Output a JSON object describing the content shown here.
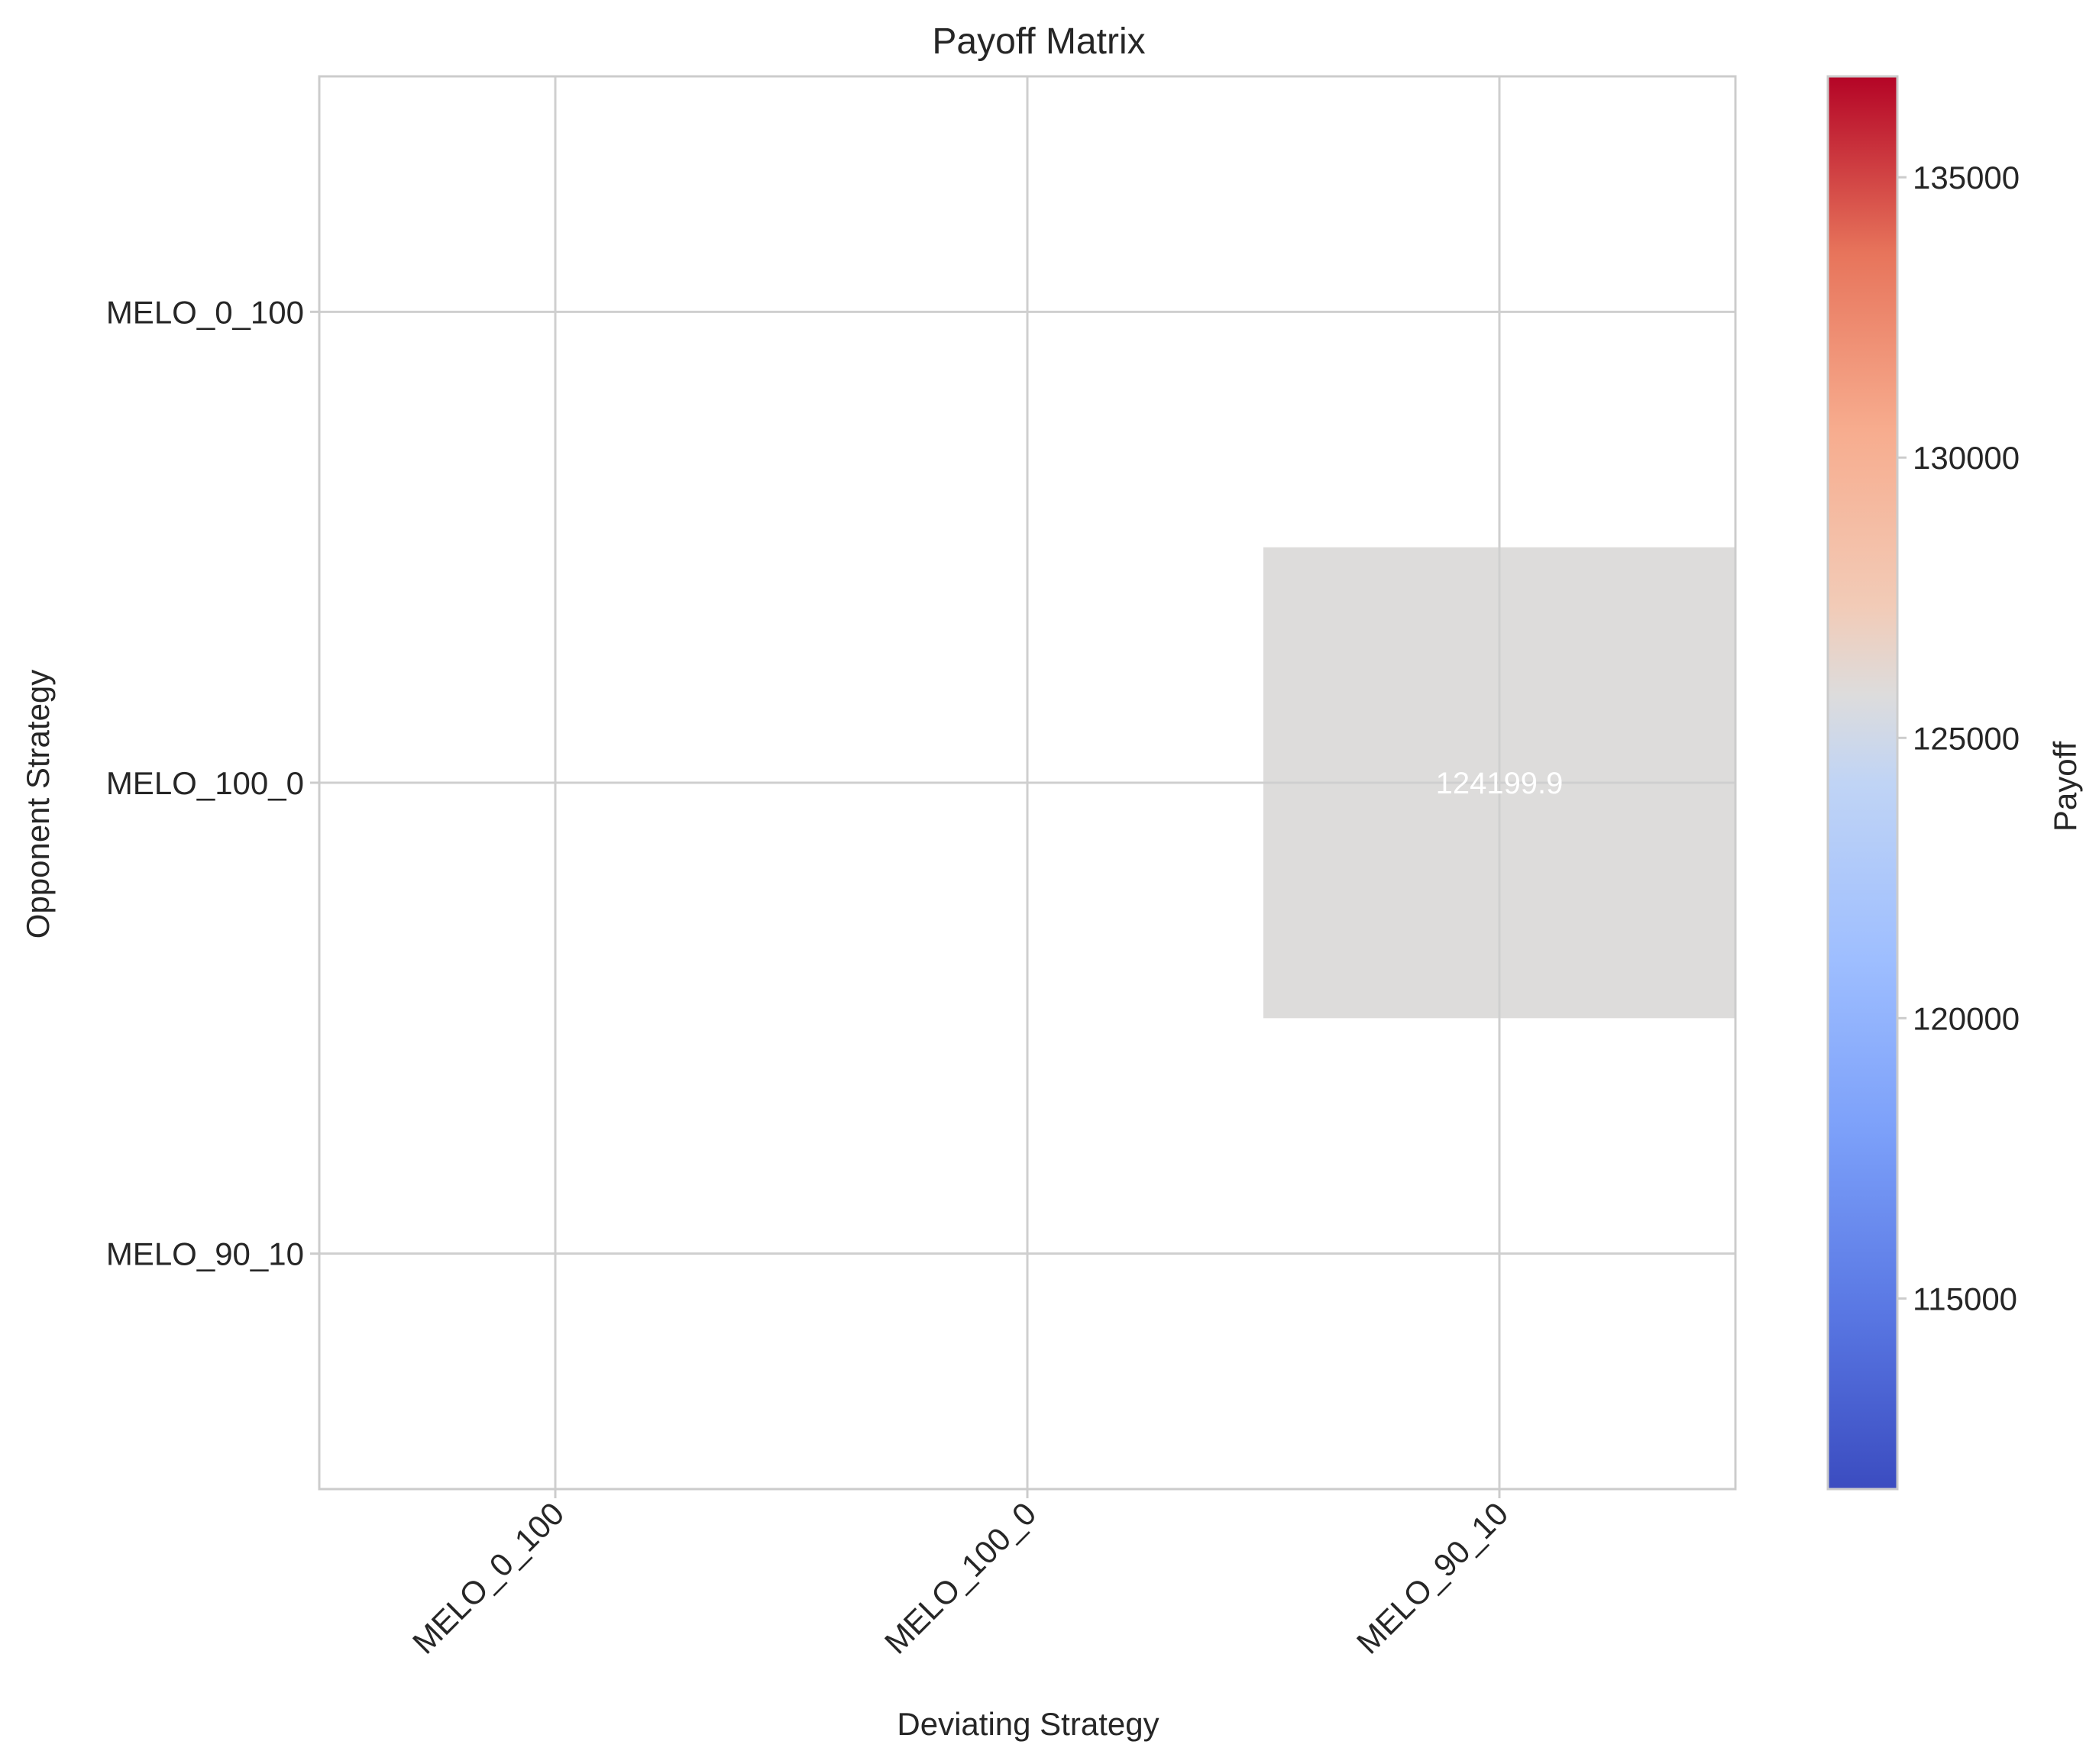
{
  "chart_data": {
    "type": "heatmap",
    "title": "Payoff Matrix",
    "xlabel": "Deviating Strategy",
    "ylabel": "Opponent Strategy",
    "x_categories": [
      "MELO_0_100",
      "MELO_100_0",
      "MELO_90_10"
    ],
    "y_categories": [
      "MELO_0_100",
      "MELO_100_0",
      "MELO_90_10"
    ],
    "cells": [
      {
        "x": "MELO_90_10",
        "y": "MELO_100_0",
        "value": 124199.9,
        "label": "124199.9",
        "color": "#dddcdb"
      }
    ],
    "colorbar": {
      "label": "Payoff",
      "colormap": "coolwarm",
      "range": [
        111600,
        136800
      ],
      "ticks": [
        115000,
        120000,
        125000,
        130000,
        135000
      ],
      "tick_labels": [
        "115000",
        "120000",
        "125000",
        "130000",
        "135000"
      ]
    },
    "grid": true
  }
}
